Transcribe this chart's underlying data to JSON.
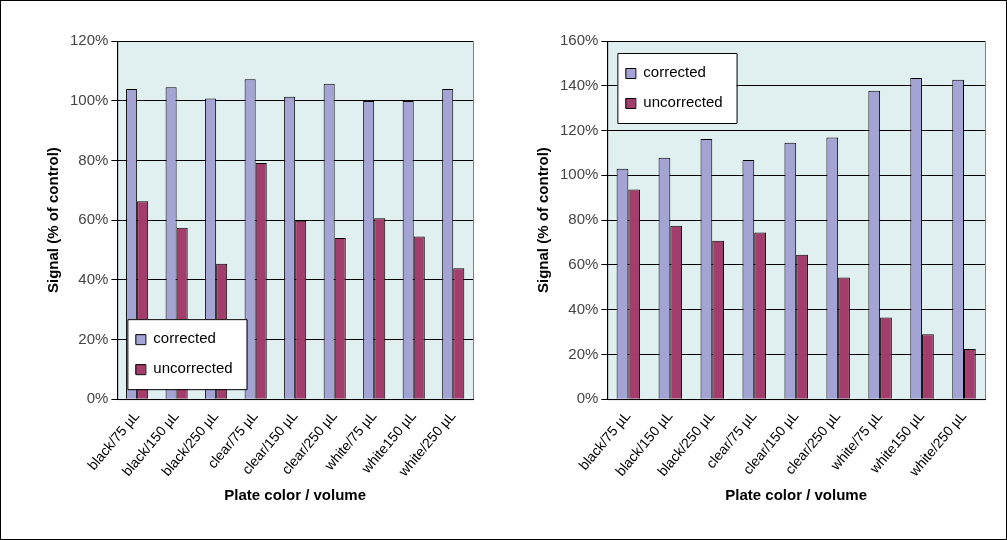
{
  "chart_data": [
    {
      "type": "bar",
      "xlabel": "Plate color / volume",
      "ylabel": "Signal (% of control)",
      "categories": [
        "black/75 µL",
        "black/150 µL",
        "black/250 µL",
        "clear/75 µL",
        "clear/150 µL",
        "clear/250 µL",
        "white/75 µL",
        "white150 µL",
        "white/250 µL"
      ],
      "series": [
        {
          "name": "corrected",
          "color": "#a3a3d4",
          "values": [
            103.9,
            104.5,
            100.7,
            107.2,
            101.3,
            105.7,
            99.9,
            99.9,
            103.9
          ]
        },
        {
          "name": "uncorrected",
          "color": "#a33d6b",
          "values": [
            66.3,
            57.4,
            45.4,
            79.1,
            59.8,
            54.0,
            60.6,
            54.5,
            43.9
          ]
        }
      ],
      "ylim": [
        0,
        120
      ],
      "yticks": [
        {
          "value": 0,
          "label": "0%"
        },
        {
          "value": 20,
          "label": "20%"
        },
        {
          "value": 40,
          "label": "40%"
        },
        {
          "value": 60,
          "label": "60%"
        },
        {
          "value": 80,
          "label": "80%"
        },
        {
          "value": 100,
          "label": "100%"
        },
        {
          "value": 120,
          "label": "120%"
        }
      ],
      "grid": "y",
      "legend": "bottom left"
    },
    {
      "type": "bar",
      "xlabel": "Plate color / volume",
      "ylabel": "Signal (% of control)",
      "categories": [
        "black/75 µL",
        "black/150 µL",
        "black/250 µL",
        "clear/75 µL",
        "clear/150 µL",
        "clear/250 µL",
        "white/75 µL",
        "white150 µL",
        "white/250 µL"
      ],
      "series": [
        {
          "name": "corrected",
          "color": "#a3a3d4",
          "values": [
            102.9,
            107.8,
            116.2,
            106.8,
            114.6,
            116.9,
            137.8,
            143.5,
            142.7
          ]
        },
        {
          "name": "uncorrected",
          "color": "#a33d6b",
          "values": [
            93.7,
            77.5,
            70.8,
            74.4,
            64.5,
            54.3,
            36.5,
            29.0,
            22.4
          ]
        }
      ],
      "ylim": [
        0,
        160
      ],
      "yticks": [
        {
          "value": 0,
          "label": "0%"
        },
        {
          "value": 20,
          "label": "20%"
        },
        {
          "value": 40,
          "label": "40%"
        },
        {
          "value": 60,
          "label": "60%"
        },
        {
          "value": 80,
          "label": "80%"
        },
        {
          "value": 100,
          "label": "100%"
        },
        {
          "value": 120,
          "label": "120%"
        },
        {
          "value": 140,
          "label": "140%"
        },
        {
          "value": 160,
          "label": "160%"
        }
      ],
      "grid": "y",
      "legend": "top left"
    }
  ]
}
